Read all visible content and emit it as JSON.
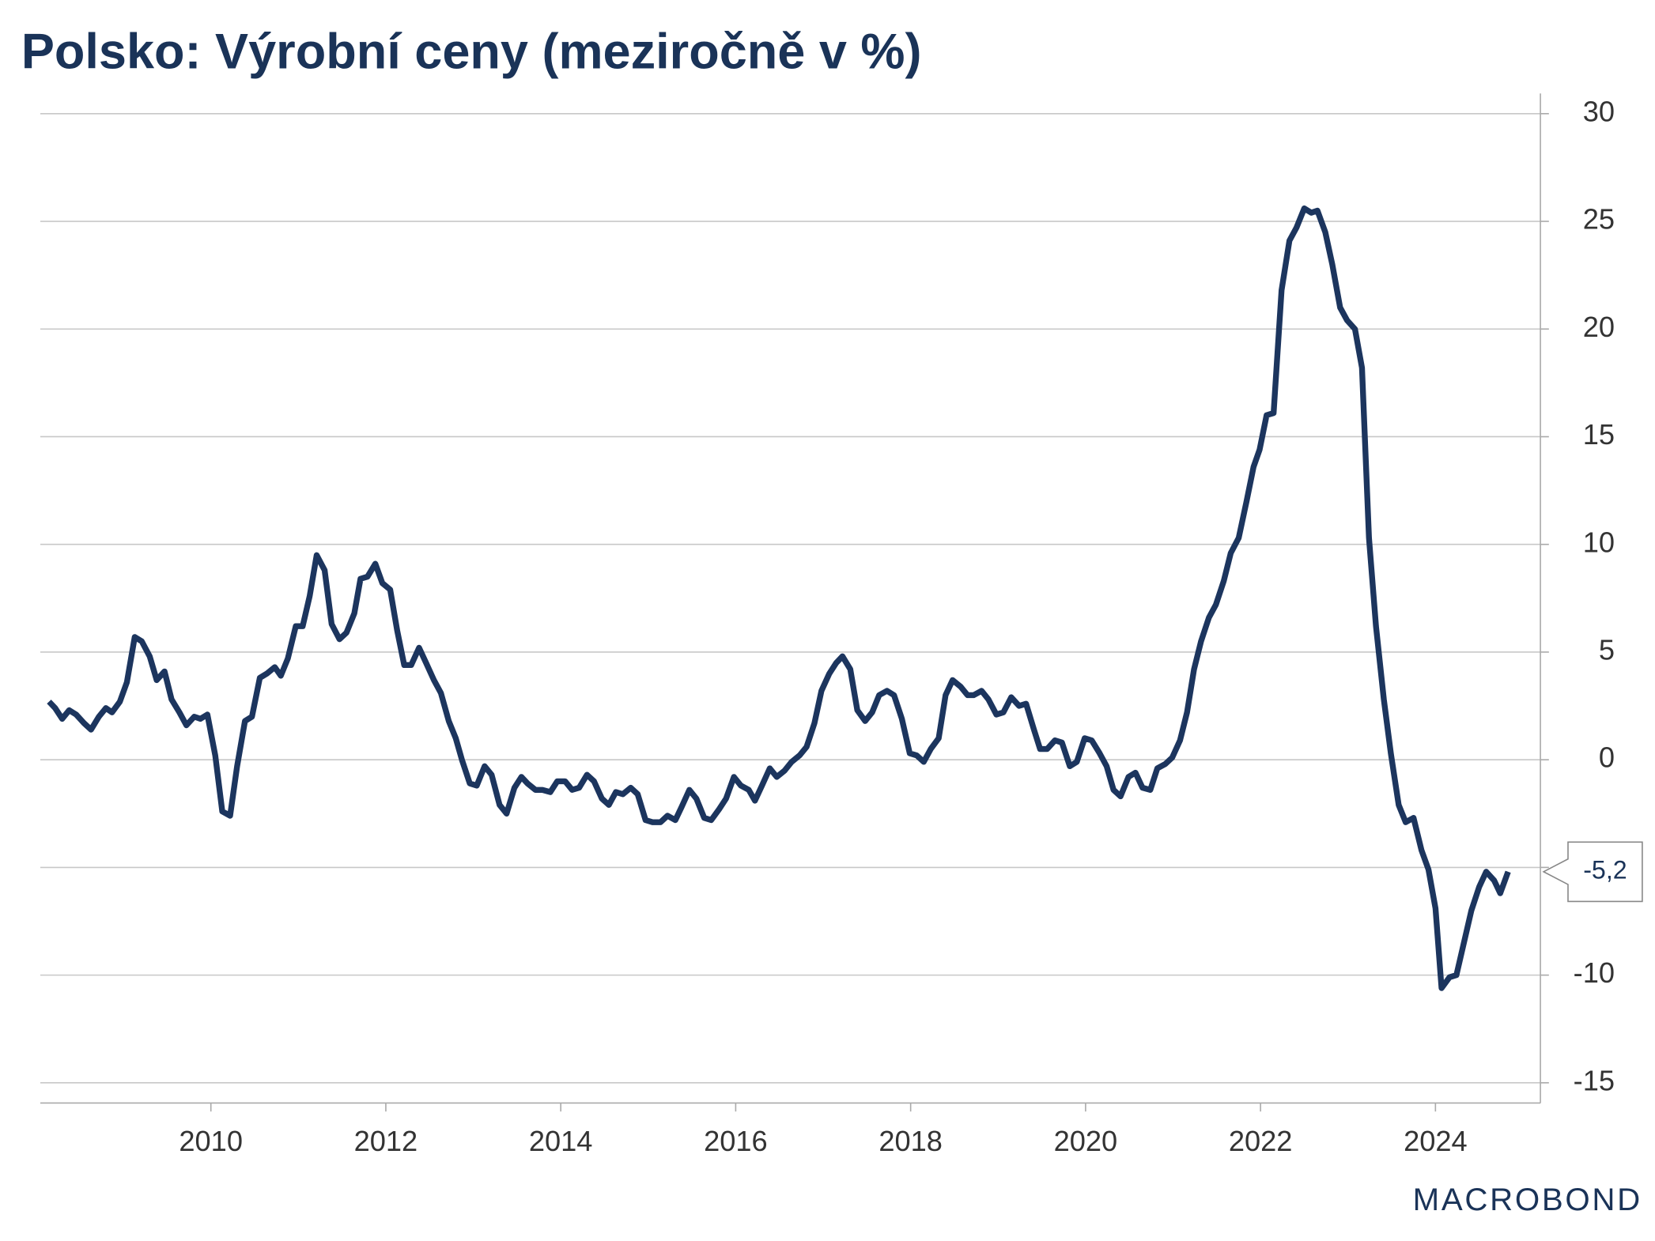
{
  "chart_data": {
    "type": "line",
    "title": "Polsko: Výrobní ceny (meziročně v %)",
    "source": "MACROBOND",
    "x": [
      2008.15,
      2008.22,
      2008.3,
      2008.38,
      2008.46,
      2008.55,
      2008.63,
      2008.72,
      2008.8,
      2008.87,
      2008.96,
      2009.04,
      2009.13,
      2009.21,
      2009.3,
      2009.38,
      2009.47,
      2009.55,
      2009.64,
      2009.72,
      2009.81,
      2009.88,
      2009.96,
      2010.05,
      2010.13,
      2010.22,
      2010.3,
      2010.39,
      2010.47,
      2010.56,
      2010.64,
      2010.73,
      2010.8,
      2010.88,
      2010.97,
      2011.05,
      2011.13,
      2011.21,
      2011.3,
      2011.38,
      2011.47,
      2011.55,
      2011.64,
      2011.71,
      2011.79,
      2011.88,
      2011.96,
      2012.05,
      2012.13,
      2012.21,
      2012.29,
      2012.38,
      2012.46,
      2012.55,
      2012.63,
      2012.72,
      2012.8,
      2012.87,
      2012.96,
      2013.04,
      2013.13,
      2013.21,
      2013.3,
      2013.38,
      2013.47,
      2013.55,
      2013.62,
      2013.71,
      2013.79,
      2013.88,
      2013.96,
      2014.05,
      2014.13,
      2014.21,
      2014.3,
      2014.38,
      2014.47,
      2014.55,
      2014.63,
      2014.71,
      2014.8,
      2014.88,
      2014.97,
      2015.05,
      2015.14,
      2015.22,
      2015.31,
      2015.38,
      2015.47,
      2015.55,
      2015.64,
      2015.72,
      2015.81,
      2015.89,
      2015.98,
      2016.06,
      2016.15,
      2016.22,
      2016.3,
      2016.39,
      2016.47,
      2016.56,
      2016.64,
      2016.73,
      2016.81,
      2016.9,
      2016.98,
      2017.07,
      2017.15,
      2017.22,
      2017.31,
      2017.39,
      2017.48,
      2017.56,
      2017.64,
      2017.73,
      2017.81,
      2017.9,
      2017.99,
      2018.07,
      2018.15,
      2018.23,
      2018.32,
      2018.4,
      2018.48,
      2018.57,
      2018.65,
      2018.72,
      2018.81,
      2018.89,
      2018.98,
      2019.06,
      2019.15,
      2019.24,
      2019.32,
      2019.41,
      2019.48,
      2019.56,
      2019.65,
      2019.73,
      2019.82,
      2019.9,
      2019.99,
      2020.07,
      2020.16,
      2020.24,
      2020.32,
      2020.4,
      2020.49,
      2020.57,
      2020.65,
      2020.74,
      2020.82,
      2020.91,
      2020.99,
      2021.08,
      2021.16,
      2021.24,
      2021.32,
      2021.41,
      2021.49,
      2021.58,
      2021.66,
      2021.75,
      2021.84,
      2021.92,
      2021.99,
      2022.07,
      2022.15,
      2022.24,
      2022.33,
      2022.41,
      2022.5,
      2022.58,
      2022.65,
      2022.74,
      2022.82,
      2022.91,
      2022.99,
      2023.08,
      2023.16,
      2023.24,
      2023.32,
      2023.41,
      2023.49,
      2023.58,
      2023.66,
      2023.75,
      2023.84,
      2023.92,
      2024.0,
      2024.07,
      2024.16,
      2024.24,
      2024.32,
      2024.41,
      2024.5,
      2024.58,
      2024.67,
      2024.74,
      2024.83
    ],
    "series": [
      {
        "name": "Výrobní ceny",
        "color": "#1c355e",
        "values": [
          2.7,
          2.4,
          1.9,
          2.3,
          2.1,
          1.7,
          1.4,
          2.0,
          2.4,
          2.2,
          2.7,
          3.6,
          5.7,
          5.5,
          4.8,
          3.7,
          4.1,
          2.8,
          2.2,
          1.6,
          2.0,
          1.9,
          2.1,
          0.2,
          -2.4,
          -2.6,
          -0.3,
          1.8,
          2.0,
          3.8,
          4.0,
          4.3,
          3.9,
          4.7,
          6.2,
          6.2,
          7.6,
          9.5,
          8.8,
          6.3,
          5.6,
          5.9,
          6.8,
          8.4,
          8.5,
          9.1,
          8.2,
          7.9,
          6.0,
          4.4,
          4.4,
          5.2,
          4.5,
          3.7,
          3.1,
          1.8,
          1.0,
          0.0,
          -1.1,
          -1.2,
          -0.3,
          -0.7,
          -2.1,
          -2.5,
          -1.3,
          -0.8,
          -1.1,
          -1.4,
          -1.4,
          -1.5,
          -1.0,
          -1.0,
          -1.4,
          -1.3,
          -0.7,
          -1.0,
          -1.8,
          -2.1,
          -1.5,
          -1.6,
          -1.3,
          -1.6,
          -2.8,
          -2.9,
          -2.9,
          -2.6,
          -2.8,
          -2.2,
          -1.4,
          -1.8,
          -2.7,
          -2.8,
          -2.3,
          -1.8,
          -0.8,
          -1.2,
          -1.4,
          -1.9,
          -1.2,
          -0.4,
          -0.8,
          -0.5,
          -0.1,
          0.2,
          0.6,
          1.7,
          3.2,
          4.0,
          4.5,
          4.8,
          4.2,
          2.3,
          1.8,
          2.2,
          3.0,
          3.2,
          3.0,
          1.9,
          0.3,
          0.2,
          -0.1,
          0.5,
          1.0,
          3.0,
          3.7,
          3.4,
          3.0,
          3.0,
          3.2,
          2.8,
          2.1,
          2.2,
          2.9,
          2.5,
          2.6,
          1.4,
          0.5,
          0.5,
          0.9,
          0.8,
          -0.3,
          -0.1,
          1.0,
          0.9,
          0.3,
          -0.3,
          -1.4,
          -1.7,
          -0.8,
          -0.6,
          -1.3,
          -1.4,
          -0.4,
          -0.2,
          0.1,
          0.9,
          2.2,
          4.2,
          5.5,
          6.6,
          7.2,
          8.3,
          9.6,
          10.3,
          12.0,
          13.6,
          14.4,
          16.0,
          16.1,
          21.8,
          24.1,
          24.7,
          25.6,
          25.4,
          25.5,
          24.5,
          23.0,
          21.0,
          20.4,
          20.0,
          18.2,
          10.3,
          6.2,
          2.8,
          0.3,
          -2.1,
          -2.9,
          -2.7,
          -4.2,
          -5.1,
          -6.9,
          -10.6,
          -10.1,
          -10.0,
          -8.6,
          -7.0,
          -5.9,
          -5.2,
          -5.6,
          -6.2,
          -5.2
        ]
      }
    ],
    "annotation": {
      "value": -5.2,
      "label": "-5,2"
    },
    "xlim": [
      2008.05,
      2025.2
    ],
    "xticks": [
      2010,
      2012,
      2014,
      2016,
      2018,
      2020,
      2022,
      2024
    ],
    "ylim": [
      -15.94,
      30.94
    ],
    "yticks": [
      30,
      25,
      20,
      15,
      10,
      5,
      0,
      -5,
      -10,
      -15
    ],
    "grid": true
  }
}
